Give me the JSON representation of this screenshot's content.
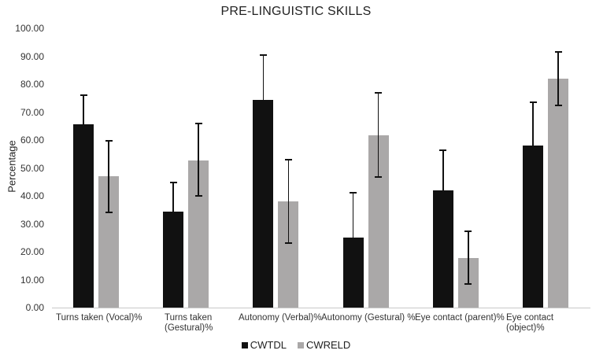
{
  "chart_data": {
    "type": "bar",
    "title": "PRE-LINGUISTIC SKILLS",
    "xlabel": "",
    "ylabel": "Percentage",
    "ylim": [
      0,
      100
    ],
    "yticks": [
      "0.00",
      "10.00",
      "20.00",
      "30.00",
      "40.00",
      "50.00",
      "60.00",
      "70.00",
      "80.00",
      "90.00",
      "100.00"
    ],
    "grid": false,
    "legend_position": "bottom",
    "categories": [
      "Turns taken (Vocal)%",
      "Turns taken (Gestural)%",
      "Autonomy (Verbal)%",
      "Autonomy (Gestural) %",
      "Eye contact (parent)%",
      "Eye contact (object)%"
    ],
    "category_lines": [
      [
        "Turns taken (Vocal)%"
      ],
      [
        "Turns taken",
        "(Gestural)%"
      ],
      [
        "Autonomy (Verbal)%"
      ],
      [
        "Autonomy (Gestural) %"
      ],
      [
        "Eye contact (parent)%"
      ],
      [
        "Eye contact (object)%"
      ]
    ],
    "series": [
      {
        "name": "CWTDL",
        "color": "#111111",
        "values": [
          65.6,
          34.4,
          74.4,
          25.1,
          42.0,
          58.0
        ],
        "error_upper": [
          76.1,
          44.8,
          90.4,
          41.1,
          56.3,
          73.5
        ],
        "error_lower": [
          54.9,
          23.7,
          58.6,
          9.6,
          27.3,
          42.3
        ]
      },
      {
        "name": "CWRELD",
        "color": "#aaa8a8",
        "values": [
          47.0,
          52.7,
          38.0,
          61.7,
          17.7,
          82.0
        ],
        "error_upper": [
          59.7,
          65.9,
          53.0,
          76.9,
          27.3,
          91.5
        ],
        "error_lower": [
          34.1,
          40.0,
          23.1,
          46.8,
          8.5,
          72.4
        ]
      }
    ]
  }
}
